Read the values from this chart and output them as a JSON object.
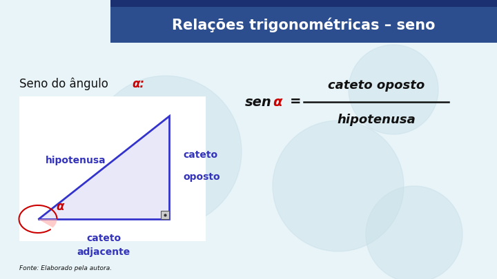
{
  "title": "Relações trigonométricas – seno",
  "title_bg_color": "#2d4e8e",
  "title_text_color": "#ffffff",
  "bg_color": "#e8f4f8",
  "triangle_fill": "#e8e8f8",
  "triangle_edge_color": "#3333cc",
  "label_hipotenusa": "hipotenusa",
  "label_cateto_oposto_1": "cateto",
  "label_cateto_oposto_2": "oposto",
  "label_cateto_adjacente_1": "cateto",
  "label_cateto_adjacente_2": "adjacente",
  "label_alpha": "α",
  "label_seno_do_angulo": "Seno do ângulo ",
  "formula_num": "cateto oposto",
  "formula_den": "hipotenusa",
  "fonte_text": "Fonte: Elaborado pela autora.",
  "blue_label_color": "#3333bb",
  "red_alpha_color": "#cc0000",
  "black_color": "#111111",
  "circle_color": "#c8dfe8",
  "title_bar_top_color": "#1a3070"
}
